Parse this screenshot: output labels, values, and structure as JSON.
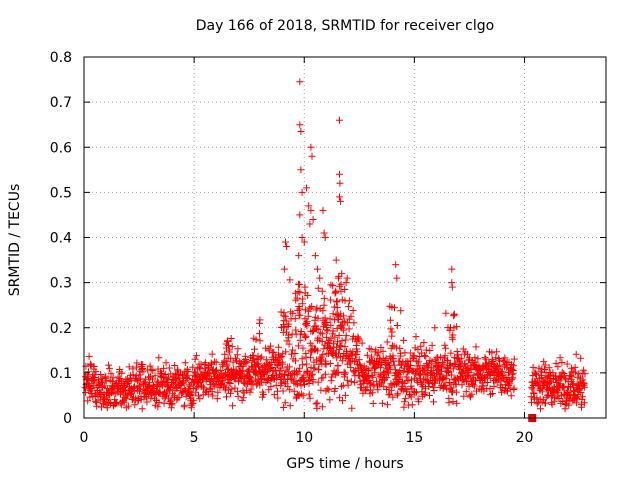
{
  "chart_data": {
    "type": "scatter",
    "title": "Day 166 of 2018, SRMTID for receiver clgo",
    "xlabel": "GPS time / hours",
    "ylabel": "SRMTID / TECUs",
    "xlim": [
      0,
      23.7
    ],
    "ylim": [
      0,
      0.8
    ],
    "xticks": [
      0,
      5,
      10,
      15,
      20
    ],
    "yticks": [
      0,
      0.1,
      0.2,
      0.3,
      0.4,
      0.5,
      0.6,
      0.7,
      0.8
    ],
    "xtick_labels": [
      "0",
      "5",
      "10",
      "15",
      "20"
    ],
    "ytick_labels": [
      "0",
      "0.1",
      "0.2",
      "0.3",
      "0.4",
      "0.5",
      "0.6",
      "0.7",
      "0.8"
    ],
    "grid": true,
    "marker": "plus",
    "color": "#ff0000",
    "outliers": [
      {
        "x": 9.8,
        "y": 0.745
      },
      {
        "x": 9.8,
        "y": 0.65
      },
      {
        "x": 9.85,
        "y": 0.635
      },
      {
        "x": 11.6,
        "y": 0.66
      },
      {
        "x": 10.3,
        "y": 0.6
      },
      {
        "x": 10.35,
        "y": 0.58
      },
      {
        "x": 9.85,
        "y": 0.55
      },
      {
        "x": 11.6,
        "y": 0.54
      },
      {
        "x": 11.62,
        "y": 0.52
      },
      {
        "x": 9.9,
        "y": 0.5
      },
      {
        "x": 10.1,
        "y": 0.51
      },
      {
        "x": 11.6,
        "y": 0.49
      },
      {
        "x": 11.65,
        "y": 0.48
      },
      {
        "x": 10.2,
        "y": 0.47
      },
      {
        "x": 10.3,
        "y": 0.46
      },
      {
        "x": 9.8,
        "y": 0.45
      },
      {
        "x": 10.4,
        "y": 0.44
      },
      {
        "x": 10.25,
        "y": 0.43
      },
      {
        "x": 10.85,
        "y": 0.46
      },
      {
        "x": 9.15,
        "y": 0.39
      },
      {
        "x": 9.2,
        "y": 0.38
      },
      {
        "x": 9.9,
        "y": 0.4
      },
      {
        "x": 10.0,
        "y": 0.39
      },
      {
        "x": 10.9,
        "y": 0.41
      },
      {
        "x": 10.95,
        "y": 0.4
      },
      {
        "x": 11.45,
        "y": 0.35
      },
      {
        "x": 11.7,
        "y": 0.32
      },
      {
        "x": 14.15,
        "y": 0.34
      },
      {
        "x": 14.2,
        "y": 0.31
      },
      {
        "x": 16.7,
        "y": 0.33
      },
      {
        "x": 16.7,
        "y": 0.3
      },
      {
        "x": 16.72,
        "y": 0.29
      },
      {
        "x": 9.1,
        "y": 0.33
      },
      {
        "x": 10.6,
        "y": 0.33
      },
      {
        "x": 10.7,
        "y": 0.31
      },
      {
        "x": 11.9,
        "y": 0.3
      },
      {
        "x": 11.95,
        "y": 0.31
      },
      {
        "x": 9.75,
        "y": 0.36
      },
      {
        "x": 10.5,
        "y": 0.36
      },
      {
        "x": 11.55,
        "y": 0.31
      },
      {
        "x": 12.05,
        "y": 0.26
      },
      {
        "x": 11.85,
        "y": 0.26
      }
    ],
    "marker_square": {
      "x": 20.35,
      "y": 0.0
    }
  }
}
